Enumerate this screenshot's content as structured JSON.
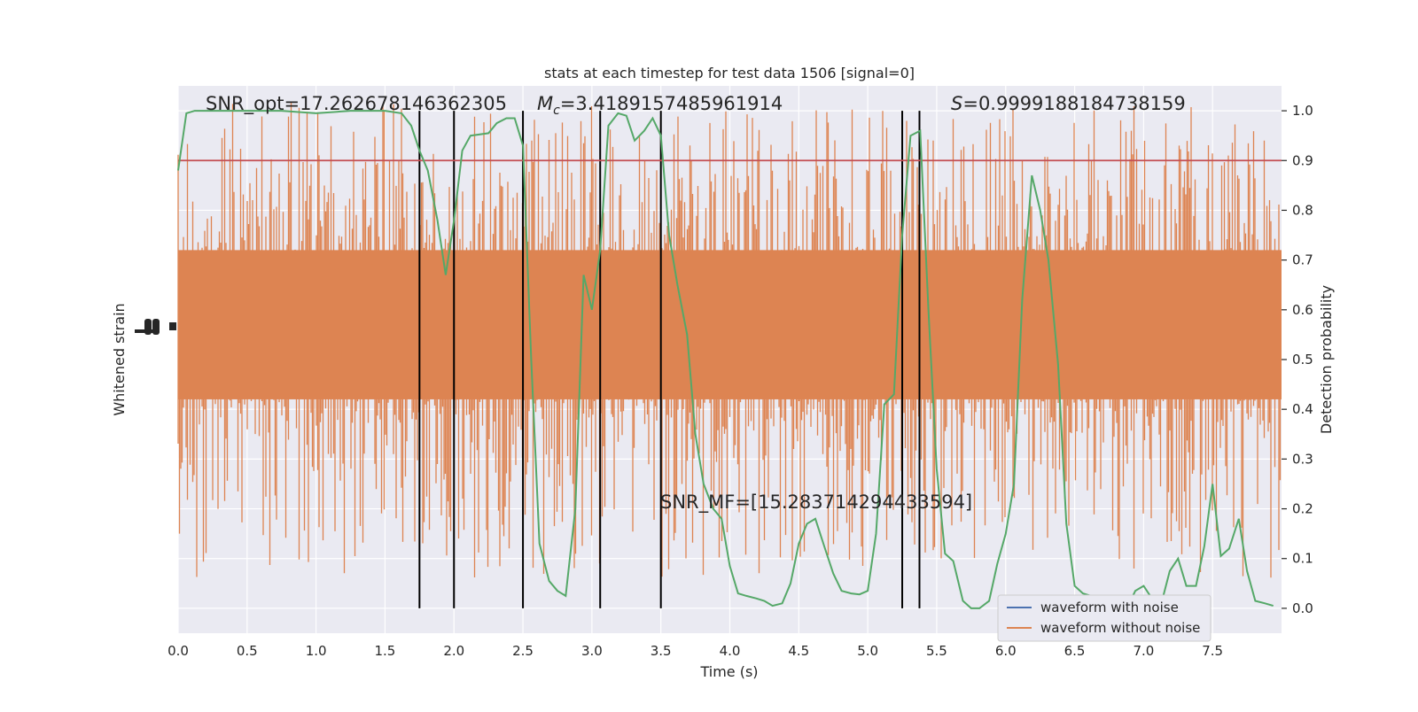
{
  "chart_data": {
    "type": "line",
    "title": "stats at each timestep for test data 1506 [signal=0]",
    "xlabel": "Time (s)",
    "ylabel_left": "Whitened strain",
    "ylabel_right": "Detection probability",
    "xlim": [
      0,
      8
    ],
    "ylim_right": [
      -0.05,
      1.05
    ],
    "x_ticks": [
      "0.0",
      "0.5",
      "1.0",
      "1.5",
      "2.0",
      "2.5",
      "3.0",
      "3.5",
      "4.0",
      "4.5",
      "5.0",
      "5.5",
      "6.0",
      "6.5",
      "7.0",
      "7.5"
    ],
    "x_tick_values": [
      0,
      0.5,
      1,
      1.5,
      2,
      2.5,
      3,
      3.5,
      4,
      4.5,
      5,
      5.5,
      6,
      6.5,
      7,
      7.5
    ],
    "y_right_ticks": [
      "0.0",
      "0.1",
      "0.2",
      "0.3",
      "0.4",
      "0.5",
      "0.6",
      "0.7",
      "0.8",
      "0.9",
      "1.0"
    ],
    "y_right_tick_values": [
      0,
      0.1,
      0.2,
      0.3,
      0.4,
      0.5,
      0.6,
      0.7,
      0.8,
      0.9,
      1.0
    ],
    "grid": true,
    "legend_position": "lower-right",
    "annotations": {
      "snr_opt": "SNR_opt=17.262678146362305",
      "mc_symbol": "M",
      "mc_sub": "c",
      "mc_value": "=3.4189157485961914",
      "s_symbol": "S",
      "s_value": "=0.9999188184738159",
      "snr_mf": "SNR_MF=[15.283714294433594]"
    },
    "threshold": {
      "value": 0.9,
      "color": "#c44e52"
    },
    "vertical_lines": [
      1.75,
      2.0,
      2.5,
      3.06,
      3.5,
      5.25,
      5.375
    ],
    "series": [
      {
        "name": "waveform with noise",
        "color": "#4c72b0",
        "values": []
      },
      {
        "name": "waveform without noise",
        "color": "#dd8452",
        "envelope_note": "dense noise band (strain values, unscaled)"
      }
    ],
    "detection_probability": {
      "color": "#55a868",
      "x": [
        0,
        0.06,
        0.12,
        0.25,
        0.5,
        0.75,
        1.0,
        1.25,
        1.5,
        1.62,
        1.69,
        1.75,
        1.81,
        1.88,
        1.94,
        2.0,
        2.06,
        2.12,
        2.25,
        2.31,
        2.38,
        2.44,
        2.5,
        2.56,
        2.62,
        2.69,
        2.75,
        2.81,
        2.88,
        2.94,
        3.0,
        3.06,
        3.12,
        3.19,
        3.25,
        3.31,
        3.38,
        3.44,
        3.5,
        3.56,
        3.62,
        3.69,
        3.75,
        3.81,
        3.88,
        3.94,
        4.0,
        4.06,
        4.12,
        4.19,
        4.25,
        4.31,
        4.38,
        4.44,
        4.5,
        4.56,
        4.62,
        4.69,
        4.75,
        4.81,
        4.88,
        4.94,
        5.0,
        5.06,
        5.12,
        5.19,
        5.25,
        5.31,
        5.38,
        5.44,
        5.5,
        5.56,
        5.62,
        5.69,
        5.75,
        5.81,
        5.88,
        5.94,
        6.0,
        6.06,
        6.12,
        6.19,
        6.25,
        6.31,
        6.38,
        6.44,
        6.5,
        6.56,
        6.62,
        6.69,
        6.75,
        6.81,
        6.88,
        6.94,
        7.0,
        7.06,
        7.12,
        7.19,
        7.25,
        7.31,
        7.38,
        7.44,
        7.5,
        7.56,
        7.62,
        7.69,
        7.75,
        7.81,
        7.88,
        7.94
      ],
      "y": [
        0.88,
        0.995,
        1.0,
        1.0,
        1.0,
        1.0,
        0.995,
        1.0,
        1.0,
        0.995,
        0.97,
        0.92,
        0.88,
        0.78,
        0.67,
        0.78,
        0.92,
        0.95,
        0.955,
        0.975,
        0.985,
        0.985,
        0.93,
        0.5,
        0.13,
        0.055,
        0.035,
        0.025,
        0.2,
        0.67,
        0.6,
        0.72,
        0.97,
        0.995,
        0.99,
        0.94,
        0.96,
        0.985,
        0.95,
        0.75,
        0.65,
        0.55,
        0.35,
        0.25,
        0.2,
        0.18,
        0.085,
        0.03,
        0.025,
        0.02,
        0.015,
        0.005,
        0.01,
        0.05,
        0.13,
        0.17,
        0.18,
        0.12,
        0.07,
        0.035,
        0.03,
        0.028,
        0.035,
        0.15,
        0.41,
        0.43,
        0.75,
        0.95,
        0.96,
        0.6,
        0.28,
        0.11,
        0.095,
        0.015,
        0.0,
        0.0,
        0.015,
        0.09,
        0.15,
        0.25,
        0.62,
        0.87,
        0.8,
        0.7,
        0.49,
        0.17,
        0.045,
        0.03,
        0.025,
        0.025,
        0.02,
        0.015,
        0.0,
        0.035,
        0.045,
        0.02,
        0.0,
        0.075,
        0.1,
        0.045,
        0.045,
        0.125,
        0.25,
        0.105,
        0.12,
        0.18,
        0.075,
        0.015,
        0.01,
        0.005
      ]
    }
  }
}
